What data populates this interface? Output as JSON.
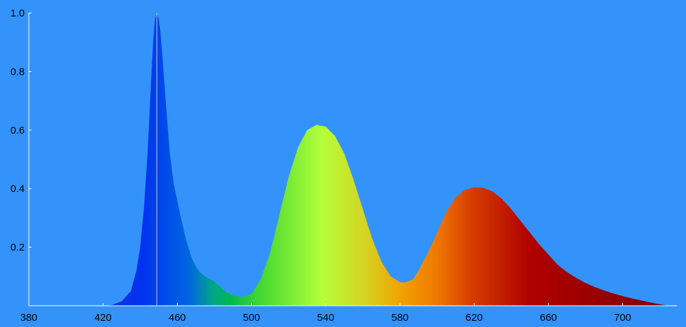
{
  "chart_data": {
    "type": "area",
    "title": "",
    "xlabel": "",
    "ylabel": "",
    "xlim": [
      380,
      727
    ],
    "ylim": [
      0,
      1.0
    ],
    "grid": false,
    "x_ticks": [
      380,
      420,
      460,
      500,
      540,
      580,
      620,
      660,
      700
    ],
    "x_tick_labels": [
      "380",
      "420",
      "460",
      "500",
      "540",
      "580",
      "620",
      "660",
      "700"
    ],
    "y_ticks": [
      0.2,
      0.4,
      0.6,
      0.8,
      1.0
    ],
    "y_tick_labels": [
      "0.2",
      "0.4",
      "0.6",
      "0.8",
      "1.0"
    ],
    "peak_marker_x": 449,
    "series": [
      {
        "x": [
          420,
          425,
          430,
          435,
          438,
          440,
          442,
          444,
          446,
          447,
          448,
          449,
          450,
          451,
          452,
          454,
          456,
          458,
          460,
          462,
          465,
          468,
          470,
          472,
          475,
          478,
          480,
          483,
          486,
          490,
          495,
          500,
          505,
          510,
          515,
          520,
          525,
          530,
          535,
          540,
          545,
          550,
          555,
          560,
          565,
          570,
          575,
          580,
          583,
          587,
          590,
          595,
          600,
          605,
          610,
          615,
          620,
          625,
          630,
          635,
          640,
          645,
          650,
          655,
          660,
          665,
          670,
          675,
          680,
          685,
          690,
          695,
          700,
          705,
          710,
          715,
          720,
          725
        ],
        "y": [
          0.0,
          0.003,
          0.015,
          0.05,
          0.12,
          0.2,
          0.33,
          0.52,
          0.78,
          0.9,
          0.98,
          1.0,
          0.98,
          0.93,
          0.85,
          0.68,
          0.52,
          0.42,
          0.36,
          0.3,
          0.22,
          0.16,
          0.135,
          0.115,
          0.1,
          0.09,
          0.082,
          0.065,
          0.048,
          0.035,
          0.03,
          0.04,
          0.09,
          0.18,
          0.31,
          0.44,
          0.54,
          0.6,
          0.618,
          0.612,
          0.58,
          0.52,
          0.43,
          0.33,
          0.23,
          0.15,
          0.1,
          0.08,
          0.08,
          0.09,
          0.12,
          0.18,
          0.25,
          0.32,
          0.37,
          0.395,
          0.405,
          0.403,
          0.39,
          0.365,
          0.33,
          0.29,
          0.25,
          0.21,
          0.175,
          0.14,
          0.115,
          0.095,
          0.078,
          0.064,
          0.052,
          0.042,
          0.033,
          0.025,
          0.018,
          0.011,
          0.005,
          0.0
        ]
      }
    ]
  }
}
